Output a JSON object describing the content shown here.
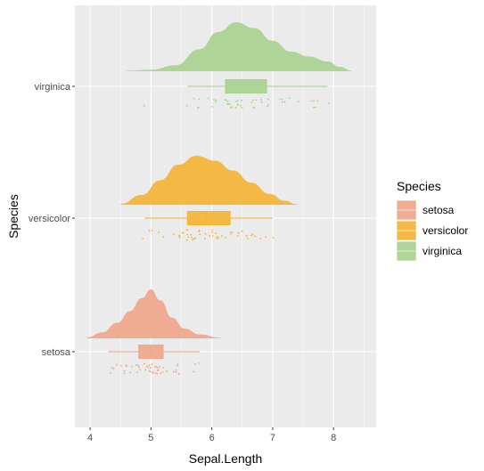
{
  "chart_data": {
    "type": "raincloud",
    "xlabel": "Sepal.Length",
    "ylabel": "Species",
    "xlim": [
      3.75,
      8.7
    ],
    "x_ticks": [
      4,
      5,
      6,
      7,
      8
    ],
    "x_tick_labels": [
      "4",
      "5",
      "6",
      "7",
      "8"
    ],
    "grid": true,
    "legend": {
      "title": "Species",
      "position": "right"
    },
    "categories": [
      "setosa",
      "versicolor",
      "virginica"
    ],
    "series": [
      {
        "name": "setosa",
        "color": "#F1A58A",
        "box": {
          "min": 4.3,
          "q1": 4.8,
          "median": 5.0,
          "q3": 5.2,
          "max": 5.8
        },
        "density_range": [
          3.95,
          6.15
        ],
        "density_curve": [
          [
            3.95,
            0.02
          ],
          [
            4.2,
            0.12
          ],
          [
            4.45,
            0.32
          ],
          [
            4.65,
            0.55
          ],
          [
            4.85,
            0.82
          ],
          [
            5.0,
            1.0
          ],
          [
            5.15,
            0.78
          ],
          [
            5.35,
            0.42
          ],
          [
            5.55,
            0.2
          ],
          [
            5.8,
            0.08
          ],
          [
            6.15,
            0.01
          ]
        ],
        "points": [
          4.3,
          4.4,
          4.4,
          4.4,
          4.5,
          4.6,
          4.6,
          4.6,
          4.6,
          4.7,
          4.7,
          4.8,
          4.8,
          4.8,
          4.8,
          4.8,
          4.9,
          4.9,
          4.9,
          4.9,
          5.0,
          5.0,
          5.0,
          5.0,
          5.0,
          5.0,
          5.0,
          5.0,
          5.1,
          5.1,
          5.1,
          5.1,
          5.1,
          5.1,
          5.1,
          5.1,
          5.2,
          5.2,
          5.2,
          5.3,
          5.4,
          5.4,
          5.4,
          5.4,
          5.4,
          5.5,
          5.5,
          5.7,
          5.7,
          5.8
        ]
      },
      {
        "name": "versicolor",
        "color": "#F5B332",
        "box": {
          "min": 4.9,
          "q1": 5.6,
          "median": 5.9,
          "q3": 6.3,
          "max": 7.0
        },
        "density_range": [
          4.5,
          7.4
        ],
        "density_curve": [
          [
            4.5,
            0.02
          ],
          [
            4.85,
            0.2
          ],
          [
            5.15,
            0.5
          ],
          [
            5.45,
            0.82
          ],
          [
            5.75,
            1.0
          ],
          [
            6.05,
            0.9
          ],
          [
            6.35,
            0.7
          ],
          [
            6.65,
            0.45
          ],
          [
            6.95,
            0.22
          ],
          [
            7.2,
            0.08
          ],
          [
            7.4,
            0.01
          ]
        ],
        "points": [
          4.9,
          5.0,
          5.0,
          5.1,
          5.2,
          5.4,
          5.5,
          5.5,
          5.5,
          5.5,
          5.5,
          5.6,
          5.6,
          5.6,
          5.6,
          5.6,
          5.7,
          5.7,
          5.7,
          5.7,
          5.7,
          5.8,
          5.8,
          5.8,
          5.9,
          5.9,
          6.0,
          6.0,
          6.0,
          6.0,
          6.1,
          6.1,
          6.1,
          6.1,
          6.2,
          6.2,
          6.3,
          6.3,
          6.3,
          6.4,
          6.4,
          6.5,
          6.6,
          6.6,
          6.7,
          6.7,
          6.7,
          6.8,
          6.9,
          7.0
        ]
      },
      {
        "name": "virginica",
        "color": "#A9D18E",
        "box": {
          "min": 5.6,
          "q1": 6.225,
          "median": 6.5,
          "q3": 6.9,
          "max": 7.9
        },
        "density_range": [
          4.6,
          8.3
        ],
        "density_curve": [
          [
            4.6,
            0.01
          ],
          [
            5.0,
            0.03
          ],
          [
            5.4,
            0.12
          ],
          [
            5.8,
            0.45
          ],
          [
            6.1,
            0.8
          ],
          [
            6.4,
            1.0
          ],
          [
            6.7,
            0.88
          ],
          [
            7.0,
            0.62
          ],
          [
            7.3,
            0.4
          ],
          [
            7.6,
            0.3
          ],
          [
            7.9,
            0.2
          ],
          [
            8.1,
            0.09
          ],
          [
            8.3,
            0.01
          ]
        ],
        "points": [
          4.9,
          5.6,
          5.7,
          5.8,
          5.8,
          5.8,
          5.9,
          6.0,
          6.0,
          6.1,
          6.1,
          6.2,
          6.2,
          6.3,
          6.3,
          6.3,
          6.3,
          6.3,
          6.3,
          6.4,
          6.4,
          6.4,
          6.4,
          6.4,
          6.5,
          6.5,
          6.5,
          6.5,
          6.7,
          6.7,
          6.7,
          6.7,
          6.7,
          6.8,
          6.8,
          6.9,
          6.9,
          6.9,
          7.1,
          7.2,
          7.2,
          7.2,
          7.3,
          7.4,
          7.6,
          7.7,
          7.7,
          7.7,
          7.7,
          7.9
        ]
      }
    ]
  }
}
